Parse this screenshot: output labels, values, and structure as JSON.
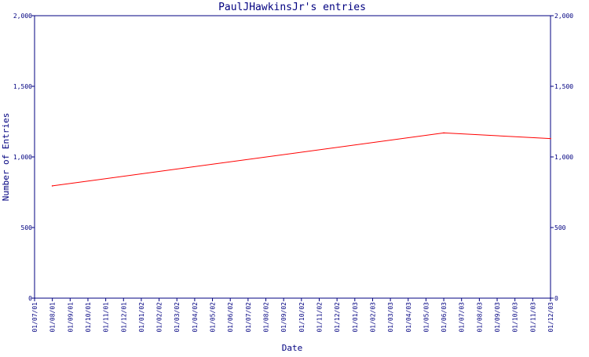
{
  "chart_data": {
    "type": "line",
    "title": "PaulJHawkinsJr's entries",
    "xlabel": "Date",
    "ylabel": "Number of Entries",
    "ylim": [
      0,
      2000
    ],
    "y_ticks": [
      0,
      500,
      "1,000",
      "1,500",
      "2,000"
    ],
    "y_tick_labels": [
      "0",
      "500",
      "1,000",
      "1,500",
      "2,000"
    ],
    "y_tick_values": [
      0,
      500,
      1000,
      1500,
      2000
    ],
    "x_tick_labels": [
      "01/07/01",
      "01/08/01",
      "01/09/01",
      "01/10/01",
      "01/11/01",
      "01/12/01",
      "01/01/02",
      "01/02/02",
      "01/03/02",
      "01/04/02",
      "01/05/02",
      "01/06/02",
      "01/07/02",
      "01/08/02",
      "01/09/02",
      "01/10/02",
      "01/11/02",
      "01/12/02",
      "01/01/03",
      "01/02/03",
      "01/03/03",
      "01/04/03",
      "01/05/03",
      "01/06/03",
      "01/07/03",
      "01/08/03",
      "01/09/03",
      "01/10/03",
      "01/11/03",
      "01/12/03"
    ],
    "grid": false,
    "series": [
      {
        "x": [
          "01/08/01",
          "01/06/03",
          "01/12/03"
        ],
        "values": [
          795,
          1170,
          1130
        ]
      }
    ],
    "colors": {
      "axis": "#000080",
      "text": "#000080",
      "line": "#ff0000"
    }
  }
}
